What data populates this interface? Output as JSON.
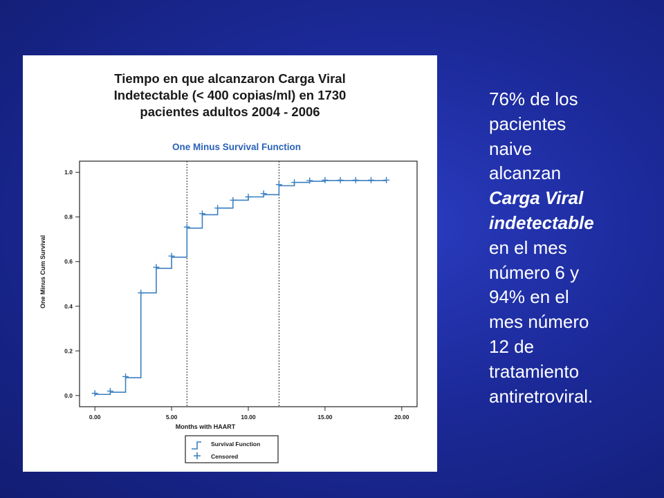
{
  "slide": {
    "heading_lines": [
      "Tiempo en que alcanzaron Carga Viral",
      "Indetectable (< 400 copias/ml) en 1730",
      "pacientes adultos 2004 - 2006"
    ],
    "side_text_lines": [
      {
        "text": "76% de los",
        "emphasis": false
      },
      {
        "text": "pacientes",
        "emphasis": false
      },
      {
        "text": "naive",
        "emphasis": false
      },
      {
        "text": "alcanzan",
        "emphasis": false
      },
      {
        "text": "Carga Viral",
        "emphasis": true
      },
      {
        "text": "indetectable",
        "emphasis": true
      },
      {
        "text": "en el mes",
        "emphasis": false
      },
      {
        "text": "número 6 y",
        "emphasis": false
      },
      {
        "text": "94% en el",
        "emphasis": false
      },
      {
        "text": "mes número",
        "emphasis": false
      },
      {
        "text": "12 de",
        "emphasis": false
      },
      {
        "text": "tratamiento",
        "emphasis": false
      },
      {
        "text": "antiretroviral.",
        "emphasis": false
      }
    ],
    "colors": {
      "background": "#1c2a9a",
      "text": "#ffffff",
      "curve": "#3a7fc0",
      "chart_title": "#2a62b8"
    }
  },
  "chart_data": {
    "type": "line",
    "title": "One Minus Survival Function",
    "xlabel": "Months with HAART",
    "ylabel": "One Minus Cum Survival",
    "xlim": [
      -1,
      21
    ],
    "ylim": [
      -0.05,
      1.05
    ],
    "x_ticks": [
      0,
      5,
      10,
      15,
      20
    ],
    "x_tick_labels": [
      "0.00",
      "5.00",
      "10.00",
      "15.00",
      "20.00"
    ],
    "y_ticks": [
      0,
      0.2,
      0.4,
      0.6,
      0.8,
      1.0
    ],
    "y_tick_labels": [
      "0.0",
      "0.2",
      "0.4",
      "0.6",
      "0.8",
      "1.0"
    ],
    "grid": false,
    "legend": {
      "position": "bottom-center",
      "entries": [
        "Survival Function",
        "Censored"
      ]
    },
    "reference_lines_x": [
      6,
      12
    ],
    "series": [
      {
        "name": "Survival Function",
        "style": "step",
        "x": [
          0,
          1,
          2,
          3,
          4,
          5,
          6,
          7,
          8,
          9,
          10,
          11,
          12,
          13,
          14,
          15,
          16,
          17,
          18,
          19
        ],
        "y": [
          0.005,
          0.015,
          0.08,
          0.46,
          0.57,
          0.62,
          0.75,
          0.81,
          0.84,
          0.875,
          0.89,
          0.9,
          0.94,
          0.955,
          0.96,
          0.963,
          0.963,
          0.963,
          0.963,
          0.963
        ]
      },
      {
        "name": "Censored",
        "style": "marker",
        "x": [
          0,
          1,
          2,
          3,
          4,
          5,
          6,
          7,
          8,
          9,
          10,
          11,
          12,
          13,
          14,
          15,
          16,
          17,
          18,
          19
        ],
        "y": [
          0.01,
          0.02,
          0.085,
          0.46,
          0.575,
          0.625,
          0.755,
          0.815,
          0.84,
          0.875,
          0.89,
          0.905,
          0.945,
          0.955,
          0.963,
          0.965,
          0.965,
          0.965,
          0.965,
          0.965
        ]
      }
    ]
  }
}
